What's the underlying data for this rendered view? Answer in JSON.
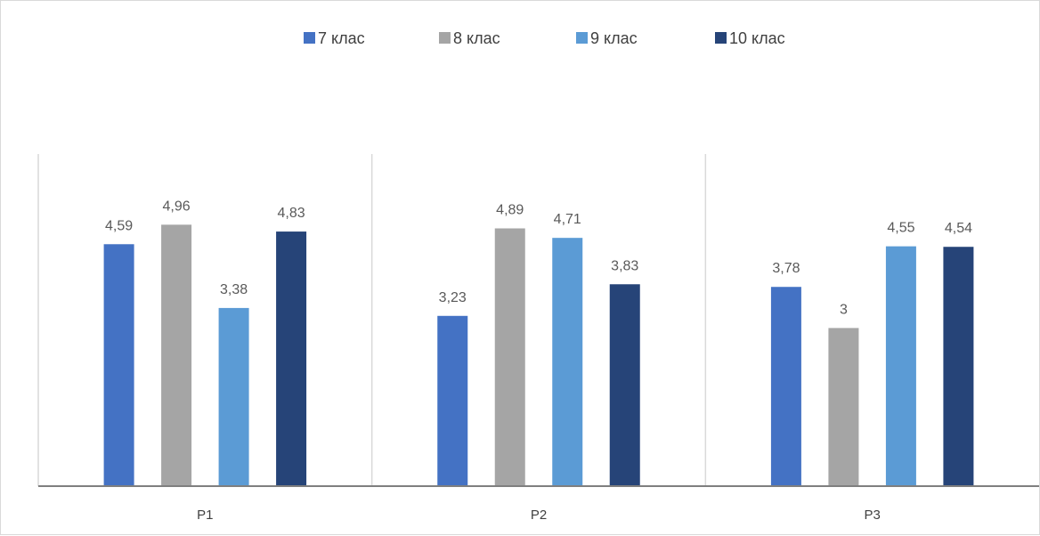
{
  "chart_data": {
    "type": "bar",
    "title": "",
    "xlabel": "",
    "ylabel": "",
    "categories": [
      "P1",
      "P2",
      "P3"
    ],
    "series": [
      {
        "name": "7 клас",
        "color": "#4472c4",
        "values": [
          4.59,
          3.23,
          3.78
        ],
        "labels": [
          "4,59",
          "3,23",
          "3,78"
        ]
      },
      {
        "name": "8 клас",
        "color": "#a5a5a5",
        "values": [
          4.96,
          4.89,
          3.0
        ],
        "labels": [
          "4,96",
          "4,89",
          "3"
        ]
      },
      {
        "name": "9 клас",
        "color": "#5b9bd5",
        "values": [
          3.38,
          4.71,
          4.55
        ],
        "labels": [
          "3,38",
          "4,71",
          "4,55"
        ]
      },
      {
        "name": "10 клас",
        "color": "#264478",
        "values": [
          4.83,
          3.83,
          4.54
        ],
        "labels": [
          "4,83",
          "3,83",
          "4,54"
        ]
      }
    ],
    "ylim": [
      0,
      6
    ],
    "legend_position": "top",
    "grid": false,
    "category_separators": true
  }
}
